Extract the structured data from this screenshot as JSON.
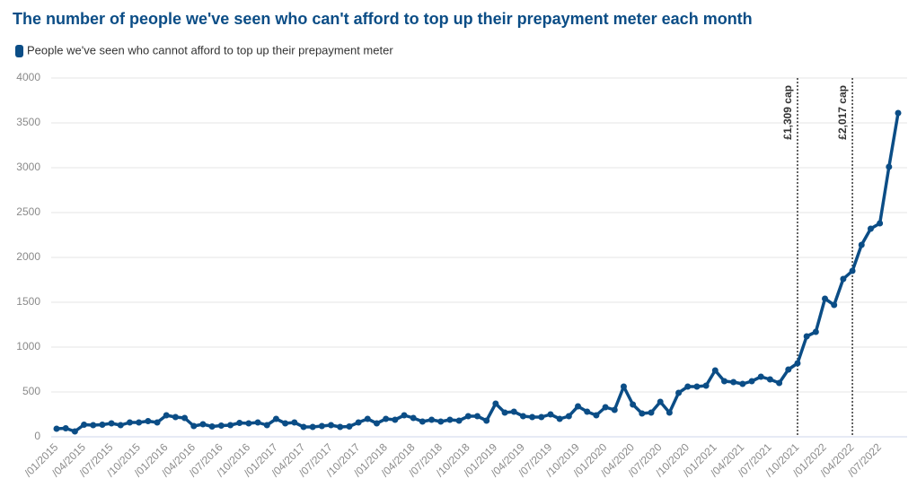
{
  "chart_data": {
    "type": "line",
    "title": "The number of people we've seen who can't afford to top up their prepayment meter each month",
    "categories": [
      "/01/2015",
      null,
      null,
      "/04/2015",
      null,
      null,
      "/07/2015",
      null,
      null,
      "/10/2015",
      null,
      null,
      "/01/2016",
      null,
      null,
      "/04/2016",
      null,
      null,
      "/07/2016",
      null,
      null,
      "/10/2016",
      null,
      null,
      "/01/2017",
      null,
      null,
      "/04/2017",
      null,
      null,
      "/07/2017",
      null,
      null,
      "/10/2017",
      null,
      null,
      "/01/2018",
      null,
      null,
      "/04/2018",
      null,
      null,
      "/07/2018",
      null,
      null,
      "/10/2018",
      null,
      null,
      "/01/2019",
      null,
      null,
      "/04/2019",
      null,
      null,
      "/07/2019",
      null,
      null,
      "/10/2019",
      null,
      null,
      "/01/2020",
      null,
      null,
      "/04/2020",
      null,
      null,
      "/07/2020",
      null,
      null,
      "/10/2020",
      null,
      null,
      "/01/2021",
      null,
      null,
      "/04/2021",
      null,
      null,
      "/07/2021",
      null,
      null,
      "/10/2021",
      null,
      null,
      "/01/2022",
      null,
      null,
      "/04/2022",
      null,
      null,
      "/07/2022",
      null,
      null
    ],
    "series": [
      {
        "name": "People we've seen who cannot afford to top up their prepayment meter",
        "color": "#0b4d86",
        "values": [
          90,
          95,
          60,
          135,
          130,
          135,
          150,
          130,
          160,
          160,
          175,
          160,
          240,
          220,
          210,
          120,
          140,
          115,
          125,
          130,
          155,
          150,
          160,
          130,
          200,
          150,
          160,
          110,
          110,
          120,
          130,
          110,
          115,
          160,
          200,
          150,
          200,
          190,
          240,
          210,
          170,
          190,
          170,
          190,
          180,
          230,
          230,
          180,
          370,
          270,
          280,
          230,
          220,
          220,
          250,
          200,
          230,
          340,
          280,
          240,
          330,
          300,
          560,
          360,
          260,
          270,
          390,
          270,
          490,
          560,
          560,
          570,
          740,
          620,
          610,
          590,
          620,
          670,
          640,
          600,
          750,
          820,
          1120,
          1170,
          1540,
          1470,
          1760,
          1850,
          2140,
          2320,
          2380,
          3010,
          3610
        ]
      }
    ],
    "ylim": [
      0,
      4000
    ],
    "yticks": [
      0,
      500,
      1000,
      1500,
      2000,
      2500,
      3000,
      3500,
      4000
    ],
    "grid": true,
    "annotations": [
      {
        "text": "£1,309 cap",
        "category_index": 81
      },
      {
        "text": "£2,017 cap",
        "category_index": 87
      }
    ]
  }
}
